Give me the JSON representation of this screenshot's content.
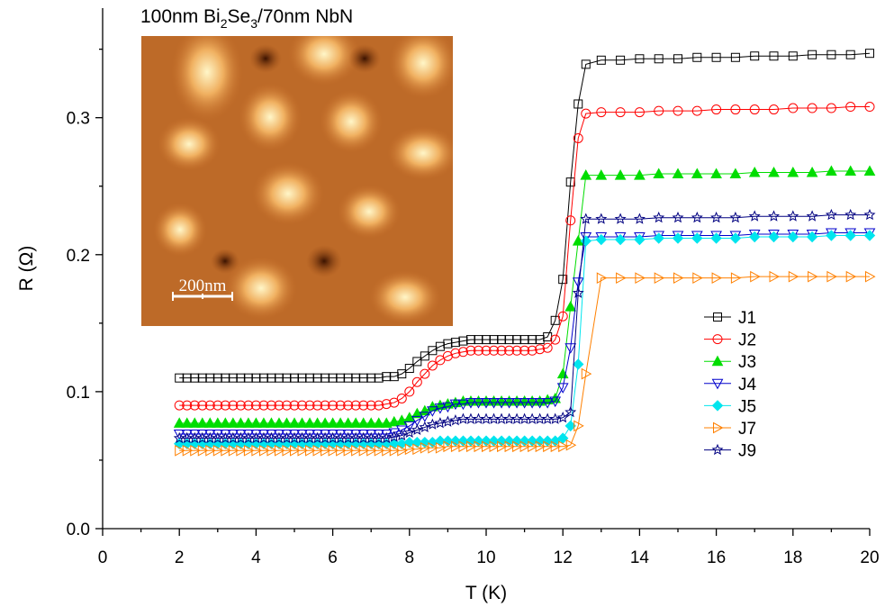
{
  "chart_data": {
    "type": "line",
    "annotation": [
      "100nm Bi",
      "2",
      "Se",
      "3",
      "/70nm NbN"
    ],
    "inset_label": "200nm",
    "x_label": "T (K)",
    "y_label": "R (Ω)",
    "xlim": [
      0,
      20
    ],
    "xticks": [
      0,
      2,
      4,
      6,
      8,
      10,
      12,
      14,
      16,
      18,
      20
    ],
    "ylim": [
      0,
      0.38
    ],
    "yticks": [
      {
        "value": 0,
        "label": "0.0"
      },
      0.1,
      0.2,
      0.3
    ],
    "legend_position": "center-right",
    "x": [
      2.0,
      2.2,
      2.4,
      2.6,
      2.8,
      3.0,
      3.2,
      3.4,
      3.6,
      3.8,
      4.0,
      4.2,
      4.4,
      4.6,
      4.8,
      5.0,
      5.2,
      5.4,
      5.6,
      5.8,
      6.0,
      6.2,
      6.4,
      6.6,
      6.8,
      7.0,
      7.2,
      7.4,
      7.6,
      7.8,
      8.0,
      8.2,
      8.4,
      8.6,
      8.8,
      9.0,
      9.2,
      9.4,
      9.6,
      9.8,
      10.0,
      10.2,
      10.4,
      10.6,
      10.8,
      11.0,
      11.2,
      11.4,
      11.6,
      11.8,
      12.0,
      12.2,
      12.4,
      12.6,
      13.0,
      13.5,
      14.0,
      14.5,
      15.0,
      15.5,
      16.0,
      16.5,
      17.0,
      17.5,
      18.0,
      18.5,
      19.0,
      19.5,
      20.0
    ],
    "series": [
      {
        "name": "J1",
        "color": "#000000",
        "marker": "square",
        "values": [
          0.11,
          0.11,
          0.11,
          0.11,
          0.11,
          0.11,
          0.11,
          0.11,
          0.11,
          0.11,
          0.11,
          0.11,
          0.11,
          0.11,
          0.11,
          0.11,
          0.11,
          0.11,
          0.11,
          0.11,
          0.11,
          0.11,
          0.11,
          0.11,
          0.11,
          0.11,
          0.11,
          0.111,
          0.111,
          0.113,
          0.117,
          0.122,
          0.126,
          0.13,
          0.133,
          0.135,
          0.136,
          0.137,
          0.138,
          0.138,
          0.138,
          0.138,
          0.138,
          0.138,
          0.138,
          0.138,
          0.138,
          0.138,
          0.14,
          0.152,
          0.182,
          0.253,
          0.31,
          0.339,
          0.342,
          0.342,
          0.343,
          0.343,
          0.343,
          0.344,
          0.344,
          0.344,
          0.345,
          0.345,
          0.345,
          0.346,
          0.346,
          0.346,
          0.347
        ]
      },
      {
        "name": "J2",
        "color": "#ff0000",
        "marker": "circle",
        "values": [
          0.09,
          0.09,
          0.09,
          0.09,
          0.09,
          0.09,
          0.09,
          0.09,
          0.09,
          0.09,
          0.09,
          0.09,
          0.09,
          0.09,
          0.09,
          0.09,
          0.09,
          0.09,
          0.09,
          0.09,
          0.09,
          0.09,
          0.09,
          0.09,
          0.09,
          0.09,
          0.09,
          0.091,
          0.092,
          0.095,
          0.1,
          0.107,
          0.113,
          0.119,
          0.123,
          0.126,
          0.128,
          0.129,
          0.13,
          0.13,
          0.13,
          0.13,
          0.13,
          0.13,
          0.13,
          0.13,
          0.13,
          0.131,
          0.132,
          0.138,
          0.155,
          0.225,
          0.285,
          0.303,
          0.304,
          0.304,
          0.304,
          0.305,
          0.305,
          0.305,
          0.306,
          0.306,
          0.306,
          0.306,
          0.307,
          0.307,
          0.307,
          0.308,
          0.308
        ]
      },
      {
        "name": "J3",
        "color": "#00dd00",
        "marker": "triangle-up-filled",
        "values": [
          0.077,
          0.077,
          0.077,
          0.077,
          0.077,
          0.077,
          0.077,
          0.077,
          0.077,
          0.077,
          0.077,
          0.077,
          0.077,
          0.077,
          0.077,
          0.077,
          0.077,
          0.077,
          0.077,
          0.077,
          0.077,
          0.077,
          0.077,
          0.077,
          0.077,
          0.077,
          0.077,
          0.077,
          0.078,
          0.079,
          0.081,
          0.084,
          0.086,
          0.089,
          0.09,
          0.091,
          0.092,
          0.093,
          0.093,
          0.093,
          0.093,
          0.093,
          0.093,
          0.093,
          0.093,
          0.093,
          0.093,
          0.093,
          0.094,
          0.095,
          0.113,
          0.162,
          0.21,
          0.258,
          0.258,
          0.258,
          0.258,
          0.259,
          0.259,
          0.259,
          0.259,
          0.259,
          0.26,
          0.26,
          0.26,
          0.26,
          0.261,
          0.261,
          0.261
        ]
      },
      {
        "name": "J4",
        "color": "#0000cc",
        "marker": "triangle-down",
        "values": [
          0.069,
          0.069,
          0.069,
          0.069,
          0.069,
          0.069,
          0.069,
          0.069,
          0.069,
          0.069,
          0.069,
          0.069,
          0.069,
          0.069,
          0.069,
          0.069,
          0.069,
          0.069,
          0.069,
          0.069,
          0.069,
          0.069,
          0.069,
          0.069,
          0.069,
          0.069,
          0.069,
          0.069,
          0.07,
          0.072,
          0.075,
          0.079,
          0.082,
          0.086,
          0.088,
          0.089,
          0.091,
          0.091,
          0.092,
          0.092,
          0.092,
          0.092,
          0.092,
          0.092,
          0.092,
          0.092,
          0.092,
          0.092,
          0.092,
          0.093,
          0.103,
          0.132,
          0.18,
          0.213,
          0.213,
          0.213,
          0.213,
          0.214,
          0.214,
          0.214,
          0.214,
          0.214,
          0.215,
          0.215,
          0.215,
          0.215,
          0.216,
          0.216,
          0.216
        ]
      },
      {
        "name": "J5",
        "color": "#00e5ee",
        "marker": "diamond-filled",
        "values": [
          0.062,
          0.062,
          0.062,
          0.062,
          0.062,
          0.062,
          0.062,
          0.062,
          0.062,
          0.062,
          0.062,
          0.062,
          0.062,
          0.062,
          0.062,
          0.062,
          0.062,
          0.062,
          0.062,
          0.062,
          0.062,
          0.062,
          0.062,
          0.062,
          0.062,
          0.062,
          0.062,
          0.062,
          0.062,
          0.062,
          0.063,
          0.063,
          0.063,
          0.063,
          0.064,
          0.064,
          0.064,
          0.064,
          0.064,
          0.064,
          0.064,
          0.064,
          0.064,
          0.064,
          0.064,
          0.064,
          0.064,
          0.064,
          0.064,
          0.064,
          0.066,
          0.075,
          0.12,
          0.21,
          0.211,
          0.211,
          0.211,
          0.212,
          0.212,
          0.212,
          0.212,
          0.212,
          0.213,
          0.213,
          0.213,
          0.213,
          0.214,
          0.214,
          0.214
        ]
      },
      {
        "name": "J7",
        "color": "#ff8000",
        "marker": "triangle-right",
        "values": [
          0.057,
          0.057,
          0.057,
          0.057,
          0.057,
          0.057,
          0.057,
          0.057,
          0.057,
          0.057,
          0.057,
          0.057,
          0.057,
          0.057,
          0.057,
          0.057,
          0.057,
          0.057,
          0.057,
          0.057,
          0.057,
          0.057,
          0.057,
          0.057,
          0.057,
          0.057,
          0.057,
          0.057,
          0.057,
          0.057,
          0.058,
          0.058,
          0.059,
          0.059,
          0.059,
          0.06,
          0.06,
          0.06,
          0.06,
          0.06,
          0.06,
          0.06,
          0.06,
          0.06,
          0.06,
          0.06,
          0.06,
          0.06,
          0.06,
          0.06,
          0.06,
          0.061,
          0.075,
          0.113,
          0.183,
          0.183,
          0.183,
          0.183,
          0.183,
          0.183,
          0.183,
          0.183,
          0.184,
          0.184,
          0.184,
          0.184,
          0.184,
          0.184,
          0.184
        ]
      },
      {
        "name": "J9",
        "color": "#000080",
        "marker": "star",
        "values": [
          0.066,
          0.066,
          0.066,
          0.066,
          0.066,
          0.066,
          0.066,
          0.066,
          0.066,
          0.066,
          0.066,
          0.066,
          0.066,
          0.066,
          0.066,
          0.066,
          0.066,
          0.066,
          0.066,
          0.066,
          0.066,
          0.066,
          0.066,
          0.066,
          0.066,
          0.066,
          0.066,
          0.066,
          0.067,
          0.068,
          0.07,
          0.072,
          0.074,
          0.076,
          0.077,
          0.078,
          0.079,
          0.08,
          0.08,
          0.08,
          0.08,
          0.08,
          0.08,
          0.08,
          0.08,
          0.08,
          0.08,
          0.08,
          0.08,
          0.08,
          0.081,
          0.085,
          0.172,
          0.226,
          0.226,
          0.226,
          0.226,
          0.227,
          0.227,
          0.227,
          0.227,
          0.227,
          0.228,
          0.228,
          0.228,
          0.228,
          0.229,
          0.229,
          0.229
        ]
      }
    ]
  }
}
